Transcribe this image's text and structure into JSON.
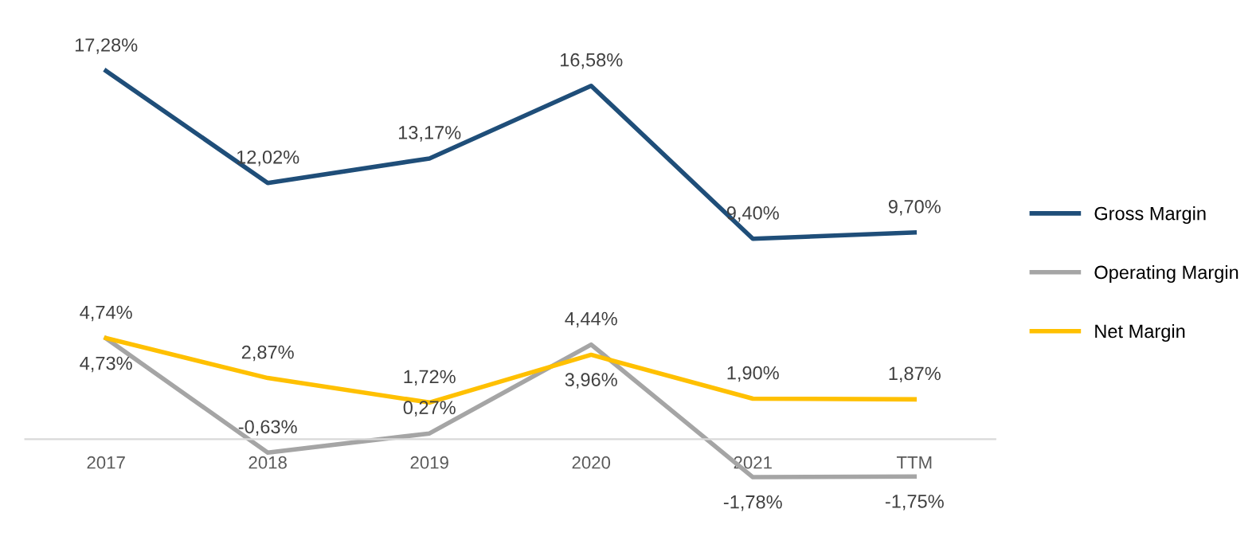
{
  "chart_data": {
    "type": "line",
    "categories": [
      "2017",
      "2018",
      "2019",
      "2020",
      "2021",
      "TTM"
    ],
    "series": [
      {
        "name": "Gross Margin",
        "color": "#1f4e79",
        "values": [
          17.28,
          12.02,
          13.17,
          16.58,
          9.4,
          9.7
        ],
        "value_labels": [
          "17,28%",
          "12,02%",
          "13,17%",
          "16,58%",
          "9,40%",
          "9,70%"
        ]
      },
      {
        "name": "Operating Margin",
        "color": "#a5a5a5",
        "values": [
          4.73,
          -0.63,
          0.27,
          4.44,
          -1.78,
          -1.75
        ],
        "value_labels": [
          "4,73%",
          "-0,63%",
          "0,27%",
          "4,44%",
          "-1,78%",
          "-1,75%"
        ]
      },
      {
        "name": "Net Margin",
        "color": "#ffc000",
        "values": [
          4.74,
          2.87,
          1.72,
          3.96,
          1.9,
          1.87
        ],
        "value_labels": [
          "4,74%",
          "2,87%",
          "1,72%",
          "3,96%",
          "1,90%",
          "1,87%"
        ]
      }
    ],
    "legend": "right",
    "grid": false,
    "marker": "none",
    "line_style": "solid",
    "tick_labels": "x"
  }
}
